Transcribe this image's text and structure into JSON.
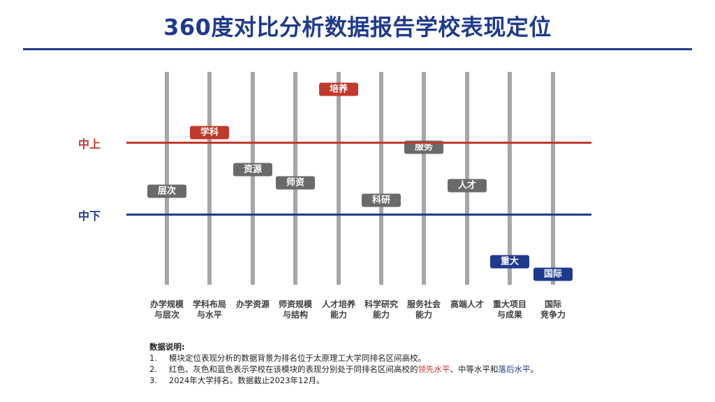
{
  "title": "360度对比分析数据报告学校表现定位",
  "levels": {
    "upper": "中上",
    "lower": "中下"
  },
  "columns": [
    {
      "line1": "办学规模",
      "line2": "与层次",
      "tag": "层次",
      "level": "gray",
      "ypos": 274
    },
    {
      "line1": "学科布局",
      "line2": "与水平",
      "tag": "学科",
      "level": "red",
      "ypos": 190
    },
    {
      "line1": "办学资源",
      "line2": "",
      "tag": "资源",
      "level": "gray",
      "ypos": 243
    },
    {
      "line1": "师资规模",
      "line2": "与结构",
      "tag": "师资",
      "level": "gray",
      "ypos": 262
    },
    {
      "line1": "人才培养",
      "line2": "能力",
      "tag": "培养",
      "level": "red",
      "ypos": 128
    },
    {
      "line1": "科学研究",
      "line2": "能力",
      "tag": "科研",
      "level": "gray",
      "ypos": 287
    },
    {
      "line1": "服务社会",
      "line2": "能力",
      "tag": "服务",
      "level": "gray",
      "ypos": 211
    },
    {
      "line1": "高端人才",
      "line2": "",
      "tag": "人才",
      "level": "gray",
      "ypos": 266
    },
    {
      "line1": "重大项目",
      "line2": "与成果",
      "tag": "重大",
      "level": "blue",
      "ypos": 375
    },
    {
      "line1": "国际",
      "line2": "竞争力",
      "tag": "国际",
      "level": "blue",
      "ypos": 393
    }
  ],
  "colors": {
    "red": "#c0392b",
    "gray": "#6a6a6a",
    "blue": "#1f3a8c",
    "line": "#a6a6a6"
  },
  "notes": {
    "heading": "数据说明:",
    "items": [
      {
        "num": "1.",
        "text": "模块定位表现分析的数据背景为排名位于太原理工大学同排名区间高校。"
      },
      {
        "num": "2.",
        "pre": "红色、灰色和蓝色表示学校在该模块的表现分别处于同排名区间高校的",
        "red": "领先水平",
        "mid": "、中等水平和",
        "blue": "落后水平",
        "post": "。"
      },
      {
        "num": "3.",
        "text": "2024年大学排名。数据截止2023年12月。"
      }
    ]
  }
}
